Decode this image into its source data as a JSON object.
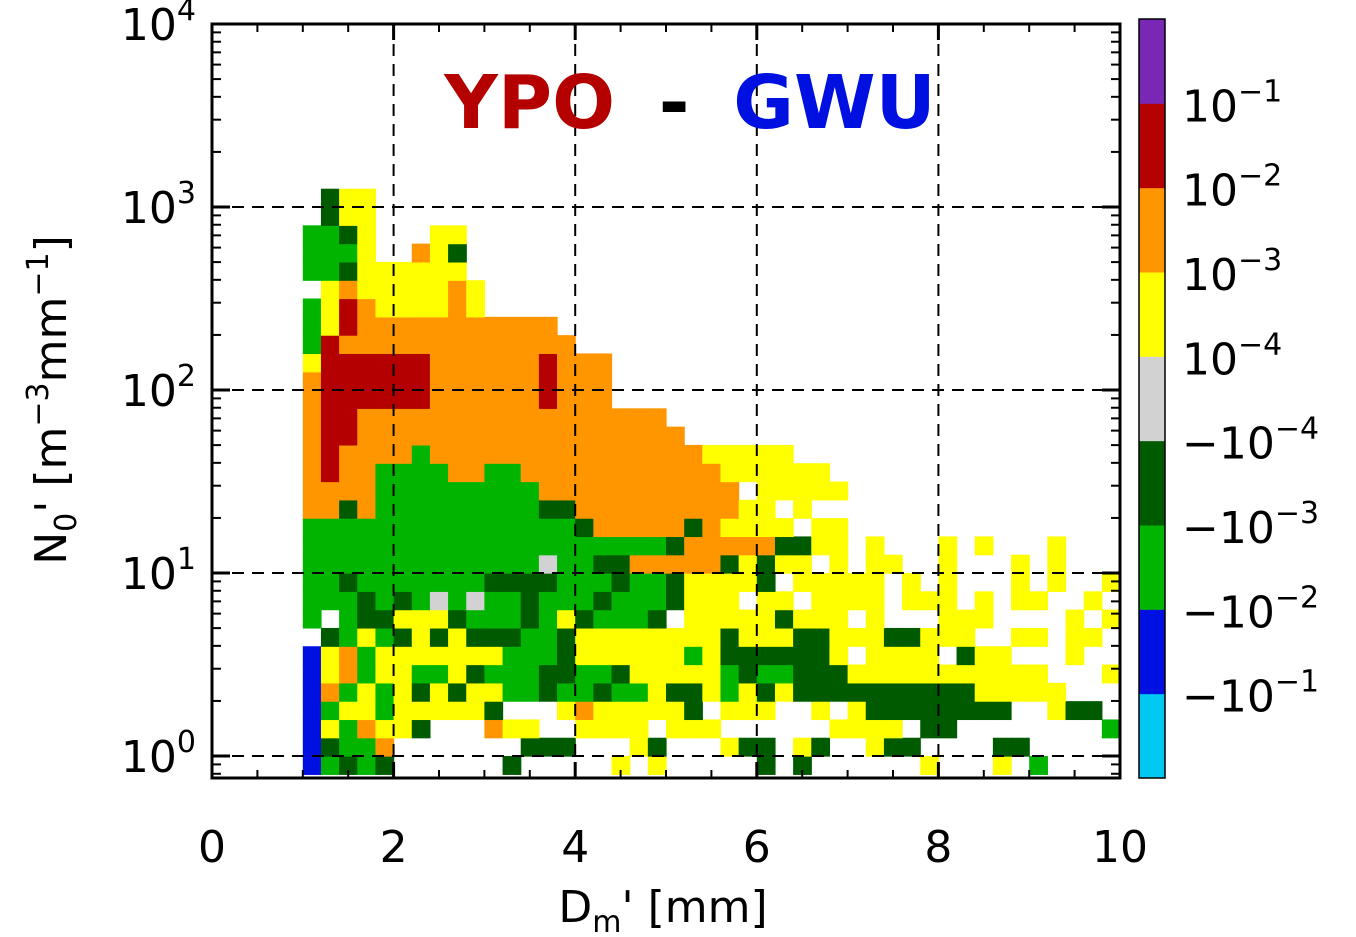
{
  "title": {
    "left": "YPO",
    "sep": "-",
    "right": "GWU",
    "left_color": "#b50000",
    "sep_color": "#000000",
    "right_color": "#0010e0"
  },
  "chart_data": {
    "type": "heatmap",
    "xlabel": {
      "main": "D",
      "sub": "m",
      "rest": "' [mm]"
    },
    "ylabel": {
      "main": "N",
      "sub": "0",
      "rest1": "' [m",
      "sup1": "−3",
      "rest2": "mm",
      "sup2": "−1",
      "rest3": "]"
    },
    "x_axis": {
      "range": [
        0,
        10
      ],
      "ticks": [
        "0",
        "2",
        "4",
        "6",
        "8",
        "10"
      ],
      "tick_values": [
        0,
        2,
        4,
        6,
        8,
        10
      ]
    },
    "y_axis": {
      "scale": "log",
      "range_exponent": [
        -0.12,
        4
      ],
      "tick_base": "10",
      "tick_exponents": [
        "0",
        "1",
        "2",
        "3",
        "4"
      ]
    },
    "grid": true,
    "colorbar": {
      "colors": [
        "#00c8f0",
        "#0010e0",
        "#00b400",
        "#005a00",
        "#d2d2d2",
        "#ffff00",
        "#ff9600",
        "#b40000",
        "#7828b4"
      ],
      "labels": [
        {
          "text": "−10",
          "exp": "−1"
        },
        {
          "text": "−10",
          "exp": "−2"
        },
        {
          "text": "−10",
          "exp": "−3"
        },
        {
          "text": "−10",
          "exp": "−4"
        },
        {
          "text": "10",
          "exp": "−4"
        },
        {
          "text": "10",
          "exp": "−3"
        },
        {
          "text": "10",
          "exp": "−2"
        },
        {
          "text": "10",
          "exp": "−1"
        }
      ]
    },
    "cell_size": {
      "dx": 0.2,
      "dlog10y": 0.1
    },
    "palette": {
      "c": "#00c8f0",
      "B": "#0010e0",
      "g": "#00b400",
      "d": "#005a00",
      "w": "#d2d2d2",
      "y": "#ffff00",
      "o": "#ff9600",
      "r": "#b40000"
    },
    "grid_rows": [
      {
        "y0": -0.1,
        "row": ".....Bgdgd......d.....y.y.....d.d......y...y.g......yy.y..."
      },
      {
        "y0": 0.0,
        "row": ".....Bdggo.......ddd...yd...ydd.yd..ydd....dd......dd...d..."
      },
      {
        "y0": 0.1,
        "row": ".....Bygoyyd...oyy..yyyy.yyy......yyyy.dd........g.yy......."
      },
      {
        "y0": 0.2,
        "row": ".....Bgyygyyyyyd...yoyyyyyd.yyy..y.ydddddddd..ydd..ddy.dd..."
      },
      {
        "y0": 0.3,
        "row": ".....Bogygydydyyggdggdggyddygydyddddddddddyyyyy....d..dd..d..."
      },
      {
        "y0": 0.4,
        "row": ".....Byogyyggydgggddggdyyyyygdggdddyyyyyyyyyyy...y..d...y...."
      },
      {
        "y0": 0.5,
        "row": ".....Byogyyyyyyygggdyyyyyygyddddddy.yyyy.dyy...y...y..y.....y"
      },
      {
        "y0": 0.6,
        "row": "......dgygdydydddggdyyyyyyyydyyyddyyyddyyy..yy.yy.y..y....yyy"
      },
      {
        "y0": 0.7,
        "row": ".....g.gddyyydgggdgydgggd.yyyyydyyy.y...yyy....y.yy.......y.."
      },
      {
        "y0": 0.8,
        "row": ".....gggdgdgwgwggdgggdgggdyyy.yy.yyyy.yyy.y.yy..y..y.....yy.y"
      },
      {
        "y0": 0.9,
        "row": ".....ggdgggggggddddgggdggdyyyyd.yyyyy.y.y...y.y..y..yy.y..y.."
      },
      {
        "y0": 1.0,
        "row": ".....gggggggggggggwggddooooodydyy.y.yy..y...y.y......y.y....."
      },
      {
        "y0": 1.1,
        "row": ".....ggggggggggggggggggggdoooooddyy.y...y.y...y.............."
      },
      {
        "y0": 1.2,
        "row": ".....gggggggggggggggdooooodoyyyy.yy.........................."
      },
      {
        "y0": 1.3,
        "row": ".....oodogggggggggddoooooooooyy.y.........................."
      },
      {
        "y0": 1.4,
        "row": ".....oooogggggggggooooooooooo.yyyyy.........................."
      },
      {
        "y0": 1.5,
        "row": ".....orooggggooggoooooooooooyyyyyy.........................."
      },
      {
        "y0": 1.6,
        "row": ".....oroooogoooooooooooooooyyyyy............................"
      },
      {
        "y0": 1.7,
        "row": ".....orroooooooooooooooooo...................................."
      },
      {
        "y0": 1.8,
        "row": ".....orrooooooooooooooooo....................................."
      },
      {
        "y0": 1.9,
        "row": ".....orrrrrroooooorooo........................................"
      },
      {
        "y0": 2.0,
        "row": ".....orrrrrroooooorooo........................................"
      },
      {
        "y0": 2.1,
        "row": ".....yrrrrrroooooorooo........................................"
      },
      {
        "y0": 2.2,
        "row": ".....grooooooooooooo.........................................."
      },
      {
        "y0": 2.3,
        "row": ".....gyrooooooooooo..........................................."
      },
      {
        "y0": 2.4,
        "row": ".....gyroyyyyoy..............................................."
      },
      {
        "y0": 2.5,
        "row": "......yoyyyyyoy..............................................."
      },
      {
        "y0": 2.6,
        "row": ".....ggdyyyyyy................................................"
      },
      {
        "y0": 2.7,
        "row": ".....gggy..oyd................................................"
      },
      {
        "y0": 2.8,
        "row": ".....ggdy...yy................................................"
      },
      {
        "y0": 2.9,
        "row": "......dyy....................................................."
      },
      {
        "y0": 3.0,
        "row": "......dyy....................................................."
      }
    ]
  }
}
